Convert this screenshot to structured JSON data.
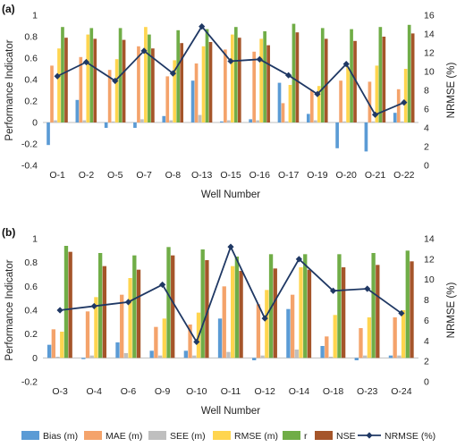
{
  "colors": {
    "Bias (m)": "#5B9BD5",
    "MAE (m)": "#F4A36B",
    "SEE (m)": "#BFBFBF",
    "RMSE (m)": "#FFD54F",
    "r": "#70AD47",
    "NSE": "#A5552A",
    "NRMSE (%)": "#1F3864"
  },
  "legend": {
    "position": "bottom",
    "items": [
      "Bias (m)",
      "MAE (m)",
      "SEE (m)",
      "RMSE (m)",
      "r",
      "NSE",
      "NRMSE (%)"
    ]
  },
  "chart_data": [
    {
      "panel_label": "(a)",
      "type": "bar",
      "xlabel": "Well Number",
      "ylabel": "Performance Indicator",
      "y2label": "NRMSE (%)",
      "ylim": [
        -0.4,
        1
      ],
      "yticks": [
        -0.4,
        -0.2,
        0,
        0.2,
        0.4,
        0.6,
        0.8,
        1
      ],
      "y2lim": [
        0,
        16
      ],
      "y2ticks": [
        0,
        2,
        4,
        6,
        8,
        10,
        12,
        14,
        16
      ],
      "grid": false,
      "categories": [
        "O-1",
        "O-2",
        "O-5",
        "O-7",
        "O-8",
        "O-13",
        "O-15",
        "O-16",
        "O-17",
        "O-19",
        "O-20",
        "O-21",
        "O-22"
      ],
      "series": [
        {
          "name": "Bias (m)",
          "values": [
            -0.21,
            0.21,
            -0.05,
            -0.05,
            0.06,
            0.39,
            0.01,
            0.03,
            0.37,
            0.08,
            -0.24,
            -0.27,
            0.09
          ]
        },
        {
          "name": "MAE (m)",
          "values": [
            0.53,
            0.61,
            0.49,
            0.71,
            0.43,
            0.55,
            0.68,
            0.66,
            0.18,
            0.3,
            0.39,
            0.38,
            0.31
          ]
        },
        {
          "name": "SEE (m)",
          "values": [
            0.02,
            0.02,
            0.01,
            0.03,
            0.02,
            0.07,
            0.02,
            0.02,
            0.01,
            0.02,
            0.01,
            0.01,
            0.01
          ]
        },
        {
          "name": "RMSE (m)",
          "values": [
            0.69,
            0.82,
            0.59,
            0.89,
            0.58,
            0.71,
            0.82,
            0.78,
            0.35,
            0.34,
            0.52,
            0.53,
            0.5
          ]
        },
        {
          "name": "r",
          "values": [
            0.89,
            0.88,
            0.88,
            0.82,
            0.86,
            0.87,
            0.89,
            0.85,
            0.92,
            0.88,
            0.87,
            0.89,
            0.91
          ]
        },
        {
          "name": "NSE",
          "values": [
            0.79,
            0.78,
            0.77,
            0.69,
            0.74,
            0.75,
            0.79,
            0.72,
            0.84,
            0.78,
            0.76,
            0.8,
            0.83
          ]
        }
      ],
      "line": {
        "name": "NRMSE (%)",
        "axis": "right",
        "values": [
          9.5,
          11.0,
          9.0,
          12.2,
          9.8,
          14.8,
          11.1,
          11.3,
          9.6,
          7.6,
          10.8,
          5.4,
          6.7
        ]
      }
    },
    {
      "panel_label": "(b)",
      "type": "bar",
      "xlabel": "Well Number",
      "ylabel": "Performance Indicator",
      "y2label": "NRMSE (%)",
      "ylim": [
        -0.2,
        1
      ],
      "yticks": [
        -0.2,
        0,
        0.2,
        0.4,
        0.6,
        0.8,
        1
      ],
      "y2lim": [
        0,
        14
      ],
      "y2ticks": [
        0,
        2,
        4,
        6,
        8,
        10,
        12,
        14
      ],
      "grid": false,
      "categories": [
        "O-3",
        "O-4",
        "O-6",
        "O-9",
        "O-10",
        "O-11",
        "O-12",
        "O-14",
        "O-18",
        "O-23",
        "O-24"
      ],
      "series": [
        {
          "name": "Bias (m)",
          "values": [
            0.11,
            -0.01,
            0.13,
            0.06,
            0.06,
            0.33,
            -0.02,
            0.41,
            0.1,
            -0.02,
            0.02
          ]
        },
        {
          "name": "MAE (m)",
          "values": [
            0.24,
            0.39,
            0.53,
            0.26,
            0.28,
            0.6,
            0.45,
            0.53,
            0.18,
            0.25,
            0.34
          ]
        },
        {
          "name": "SEE (m)",
          "values": [
            0.01,
            0.02,
            0.04,
            0.02,
            0.02,
            0.05,
            0.02,
            0.07,
            0.01,
            0.02,
            0.02
          ]
        },
        {
          "name": "RMSE (m)",
          "values": [
            0.22,
            0.51,
            0.67,
            0.33,
            0.38,
            0.77,
            0.57,
            0.76,
            0.36,
            0.34,
            0.4
          ]
        },
        {
          "name": "r",
          "values": [
            0.94,
            0.88,
            0.86,
            0.93,
            0.91,
            0.85,
            0.87,
            0.87,
            0.87,
            0.88,
            0.9
          ]
        },
        {
          "name": "NSE",
          "values": [
            0.89,
            0.77,
            0.74,
            0.86,
            0.82,
            0.73,
            0.75,
            0.74,
            0.76,
            0.78,
            0.81
          ]
        }
      ],
      "line": {
        "name": "NRMSE (%)",
        "axis": "right",
        "values": [
          7.0,
          7.4,
          7.8,
          9.5,
          3.9,
          13.2,
          6.2,
          12.0,
          8.9,
          9.1,
          6.7
        ]
      }
    }
  ]
}
